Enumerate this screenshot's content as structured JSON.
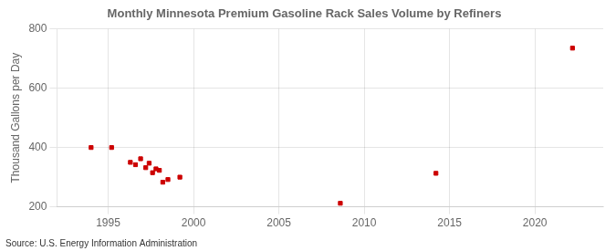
{
  "chart_data": {
    "type": "scatter",
    "title": "Monthly Minnesota Premium Gasoline Rack Sales Volume by Refiners",
    "ylabel": "Thousand Gallons per Day",
    "annotation": "Source: U.S. Energy Information Administration",
    "x": [
      1994.0,
      1995.2,
      1996.3,
      1996.6,
      1996.9,
      1997.2,
      1997.4,
      1997.6,
      1997.8,
      1998.0,
      1998.2,
      1998.5,
      1999.2,
      2008.6,
      2014.2,
      2022.2
    ],
    "values": [
      400,
      400,
      350,
      342,
      362,
      332,
      347,
      315,
      328,
      323,
      283,
      292,
      300,
      212,
      313,
      735
    ],
    "color": "#cc0000",
    "marker": "square",
    "xlim": [
      1992,
      2024
    ],
    "ylim": [
      200,
      800
    ],
    "xticks": [
      1995,
      2000,
      2005,
      2010,
      2015,
      2020
    ],
    "yticks": [
      200,
      400,
      600,
      800
    ],
    "grid": true
  }
}
